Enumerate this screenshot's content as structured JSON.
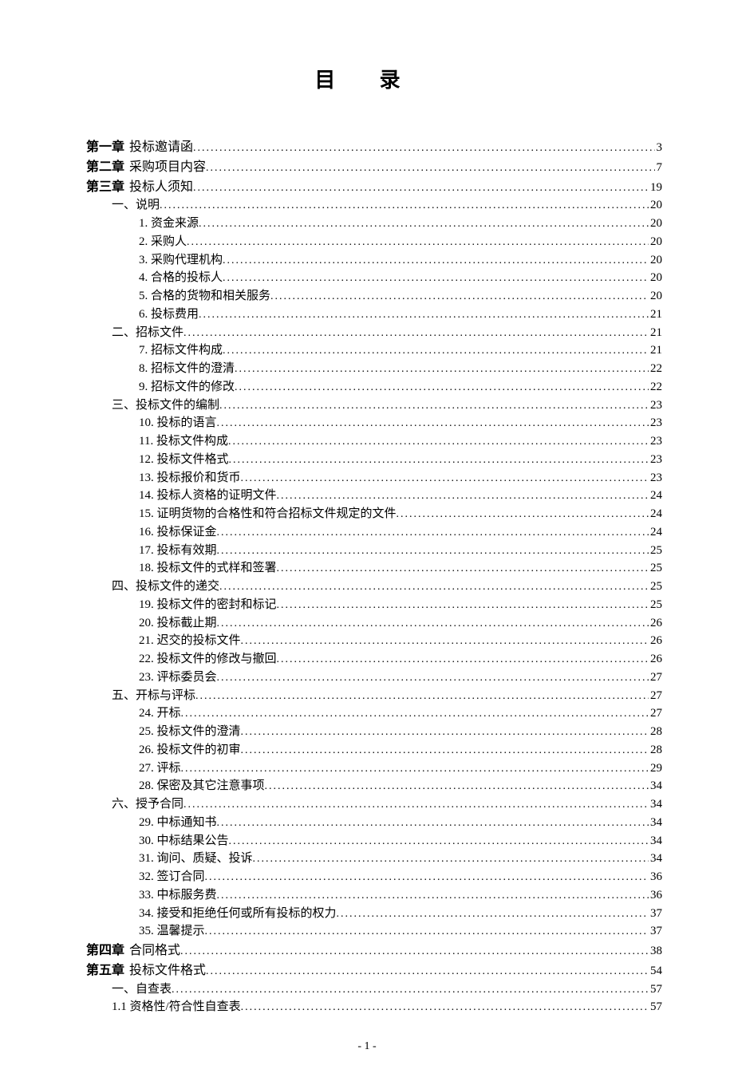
{
  "title": "目 录",
  "page_footer": "- 1 -",
  "text_color": "#000000",
  "background_color": "#ffffff",
  "entries": [
    {
      "level": "chapter",
      "chapter_label": "第一章",
      "text": "投标邀请函",
      "page": "3"
    },
    {
      "level": "chapter",
      "chapter_label": "第二章",
      "text": "采购项目内容",
      "page": "7"
    },
    {
      "level": "chapter",
      "chapter_label": "第三章",
      "text": "投标人须知",
      "page": "19"
    },
    {
      "level": "section",
      "text": "一、说明",
      "page": "20"
    },
    {
      "level": "item",
      "text": "1. 资金来源",
      "page": "20"
    },
    {
      "level": "item",
      "text": "2. 采购人",
      "page": "20"
    },
    {
      "level": "item",
      "text": "3. 采购代理机构",
      "page": "20"
    },
    {
      "level": "item",
      "text": "4. 合格的投标人",
      "page": "20"
    },
    {
      "level": "item",
      "text": "5. 合格的货物和相关服务",
      "page": "20"
    },
    {
      "level": "item",
      "text": "6. 投标费用",
      "page": "21"
    },
    {
      "level": "section",
      "text": "二、招标文件",
      "page": "21"
    },
    {
      "level": "item",
      "text": "7. 招标文件构成",
      "page": "21"
    },
    {
      "level": "item",
      "text": "8. 招标文件的澄清",
      "page": "22"
    },
    {
      "level": "item",
      "text": "9. 招标文件的修改",
      "page": "22"
    },
    {
      "level": "section",
      "text": "三、投标文件的编制",
      "page": "23"
    },
    {
      "level": "item",
      "text": "10. 投标的语言",
      "page": "23"
    },
    {
      "level": "item",
      "text": "11. 投标文件构成",
      "page": "23"
    },
    {
      "level": "item",
      "text": "12. 投标文件格式",
      "page": "23"
    },
    {
      "level": "item",
      "text": "13. 投标报价和货币",
      "page": "23"
    },
    {
      "level": "item",
      "text": "14. 投标人资格的证明文件",
      "page": "24"
    },
    {
      "level": "item",
      "text": "15. 证明货物的合格性和符合招标文件规定的文件",
      "page": "24"
    },
    {
      "level": "item",
      "text": "16. 投标保证金",
      "page": "24"
    },
    {
      "level": "item",
      "text": "17. 投标有效期",
      "page": "25"
    },
    {
      "level": "item",
      "text": "18. 投标文件的式样和签署",
      "page": "25"
    },
    {
      "level": "section",
      "text": "四、投标文件的递交",
      "page": "25"
    },
    {
      "level": "item",
      "text": "19. 投标文件的密封和标记",
      "page": "25"
    },
    {
      "level": "item",
      "text": "20. 投标截止期",
      "page": "26"
    },
    {
      "level": "item",
      "text": "21. 迟交的投标文件",
      "page": "26"
    },
    {
      "level": "item",
      "text": "22. 投标文件的修改与撤回",
      "page": "26"
    },
    {
      "level": "item",
      "text": "23. 评标委员会",
      "page": "27"
    },
    {
      "level": "section",
      "text": "五、开标与评标",
      "page": "27"
    },
    {
      "level": "item",
      "text": "24. 开标",
      "page": "27"
    },
    {
      "level": "item",
      "text": "25. 投标文件的澄清",
      "page": "28"
    },
    {
      "level": "item",
      "text": "26. 投标文件的初审",
      "page": "28"
    },
    {
      "level": "item",
      "text": "27. 评标",
      "page": "29"
    },
    {
      "level": "item",
      "text": "28. 保密及其它注意事项",
      "page": "34"
    },
    {
      "level": "section",
      "text": "六、授予合同",
      "page": "34"
    },
    {
      "level": "item",
      "text": "29. 中标通知书",
      "page": "34"
    },
    {
      "level": "item",
      "text": "30. 中标结果公告",
      "page": "34"
    },
    {
      "level": "item",
      "text": "31. 询问、质疑、投诉",
      "page": "34"
    },
    {
      "level": "item",
      "text": "32. 签订合同",
      "page": "36"
    },
    {
      "level": "item",
      "text": "33. 中标服务费",
      "page": "36"
    },
    {
      "level": "item",
      "text": "34. 接受和拒绝任何或所有投标的权力",
      "page": "37"
    },
    {
      "level": "item",
      "text": "35. 温馨提示",
      "page": "37"
    },
    {
      "level": "chapter",
      "chapter_label": "第四章",
      "text": "合同格式",
      "page": "38"
    },
    {
      "level": "chapter",
      "chapter_label": "第五章",
      "text": "投标文件格式",
      "page": "54"
    },
    {
      "level": "section",
      "text": "一、自查表",
      "page": "57"
    },
    {
      "level": "subitem",
      "text": "1.1 资格性/符合性自查表",
      "page": "57"
    }
  ]
}
